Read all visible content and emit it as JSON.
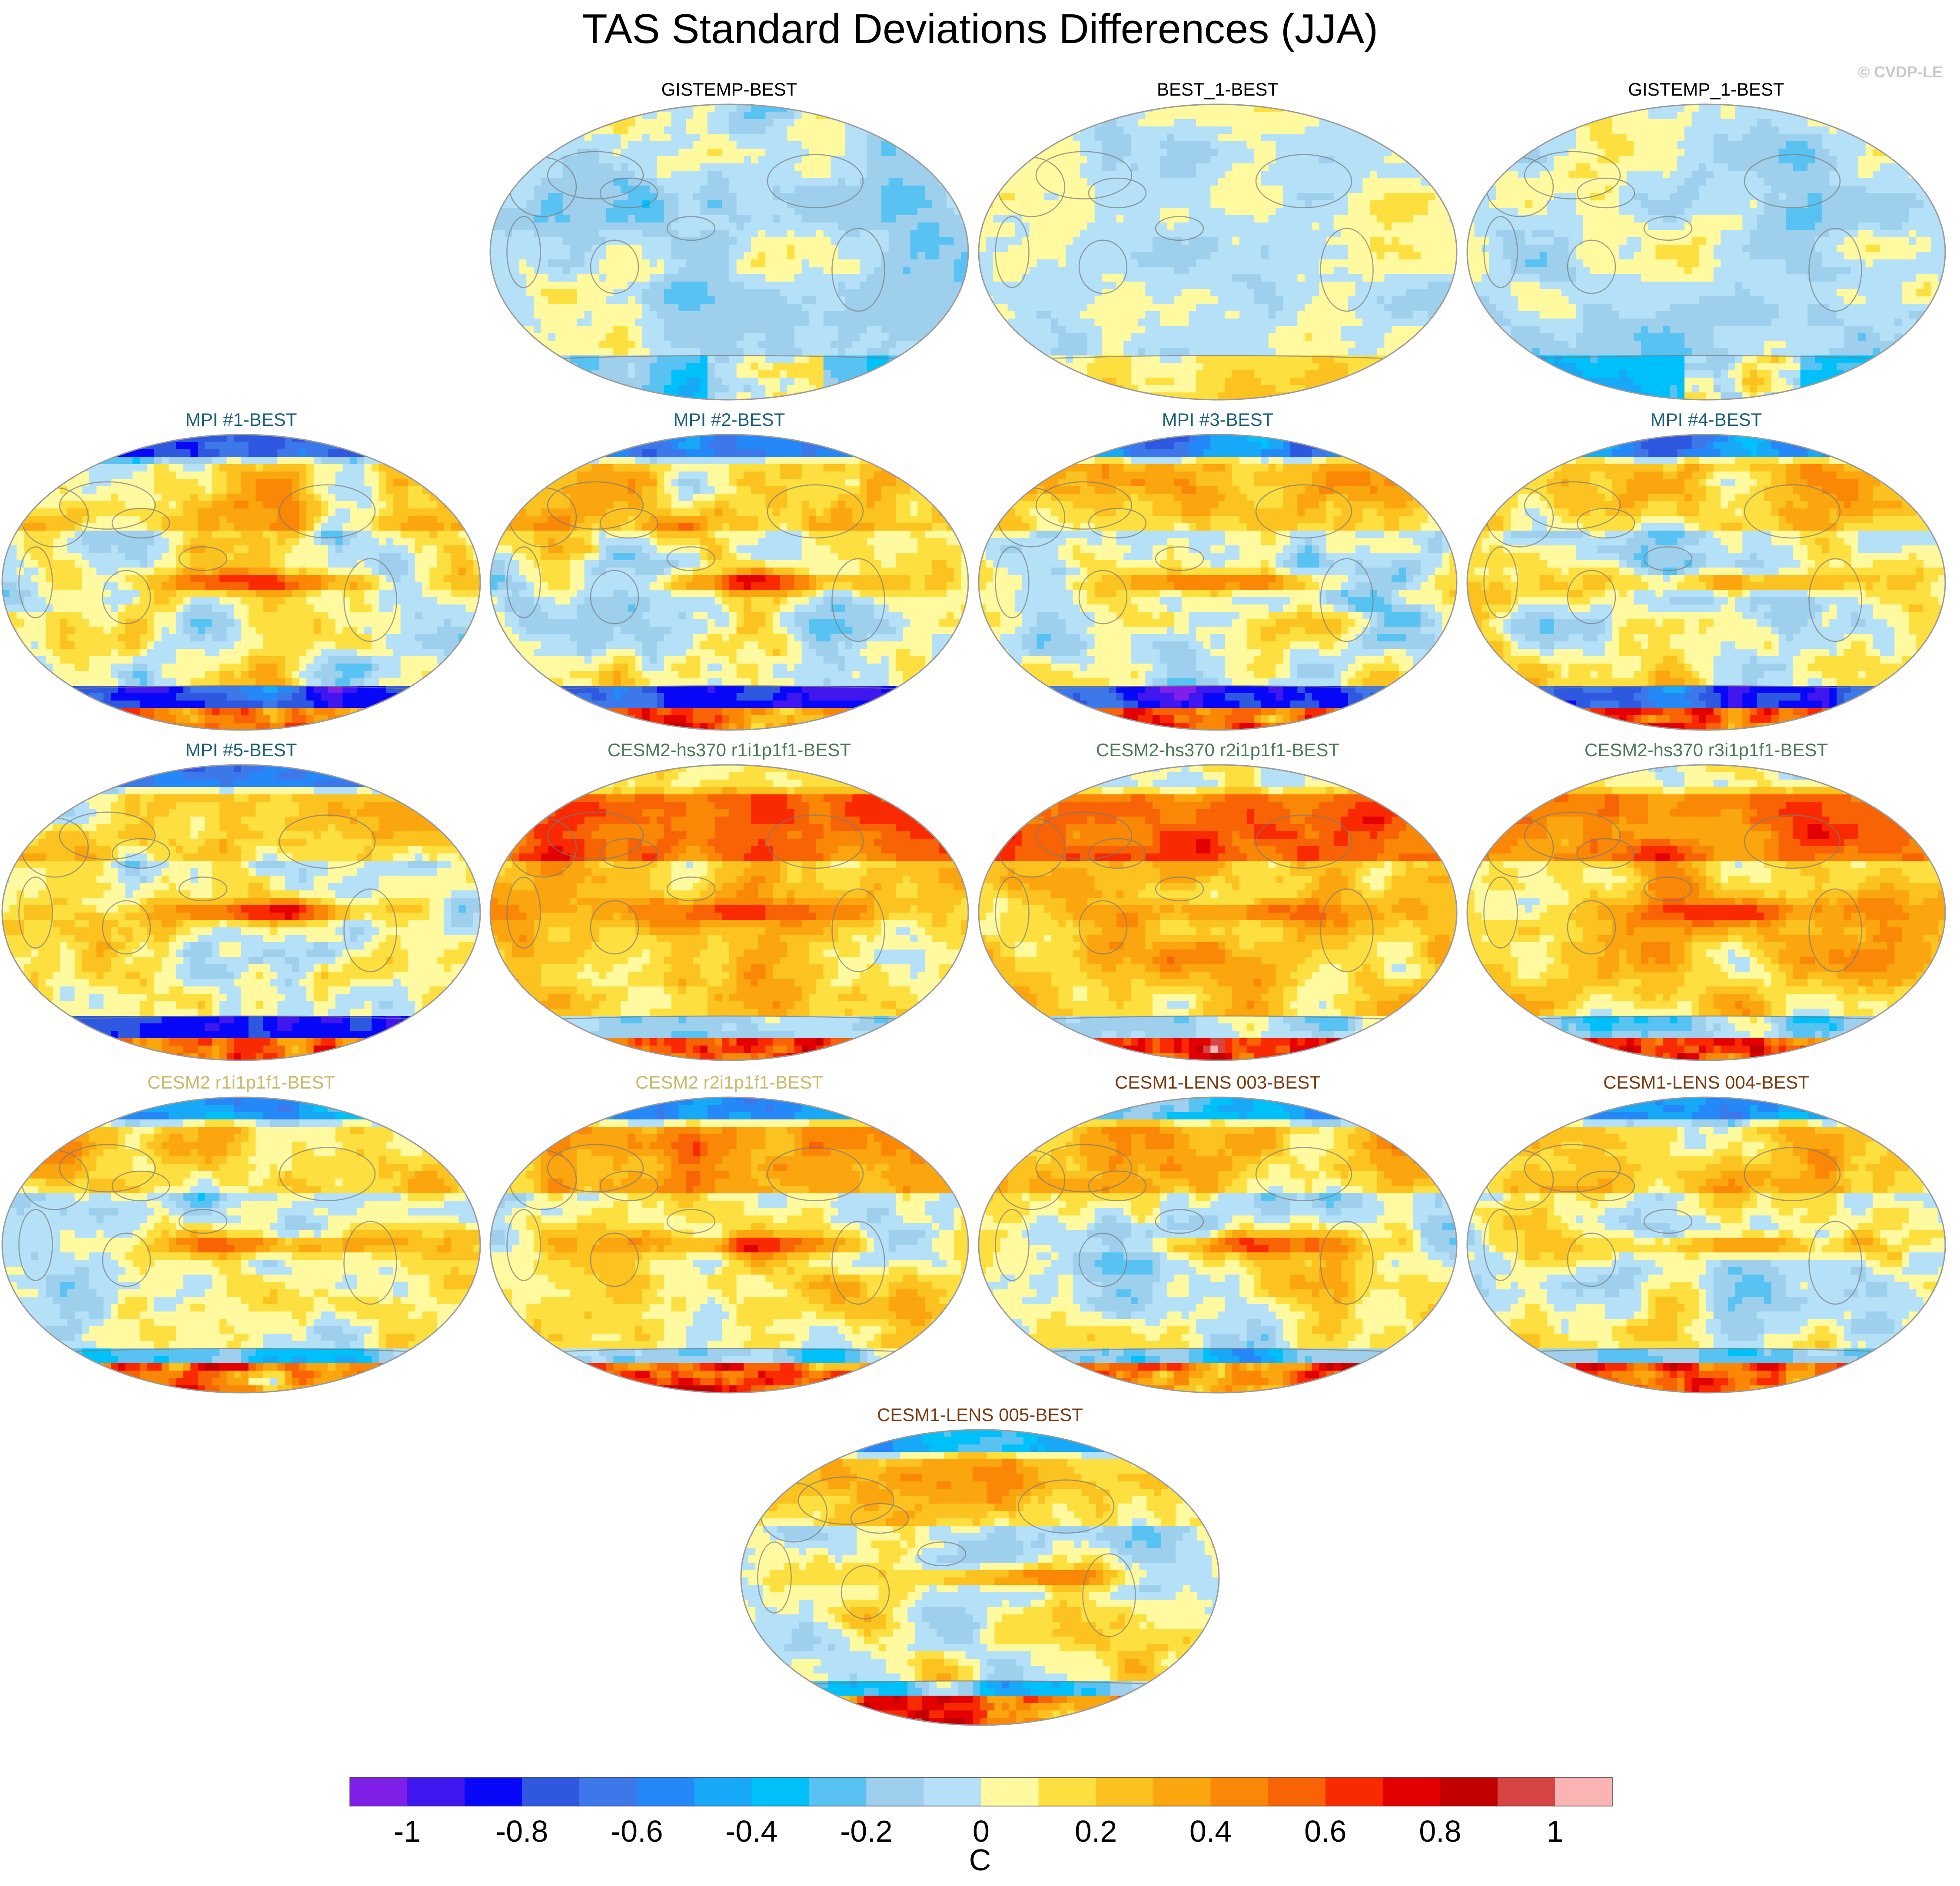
{
  "title": "TAS Standard Deviations Differences (JJA)",
  "credit": "© CVDP-LE",
  "colors": {
    "obs_title": "#000000",
    "mpi_title": "#1a5f7a",
    "cesm2hs_title": "#4a7a55",
    "cesm2_title": "#c9b96a",
    "cesm1_title": "#7a3b12",
    "land_outline": "#7a7a7a",
    "map_border": "#9a9a9a"
  },
  "chart_data": {
    "type": "heatmap",
    "projection": "Robinson-like global maps",
    "panels": [
      {
        "label": "GISTEMP-BEST",
        "group": "obs",
        "pattern": "obs"
      },
      {
        "label": "BEST_1-BEST",
        "group": "obs",
        "pattern": "obs2"
      },
      {
        "label": "GISTEMP_1-BEST",
        "group": "obs",
        "pattern": "obs"
      },
      {
        "label": "MPI #1-BEST",
        "group": "mpi",
        "pattern": "mpi"
      },
      {
        "label": "MPI #2-BEST",
        "group": "mpi",
        "pattern": "mpi"
      },
      {
        "label": "MPI #3-BEST",
        "group": "mpi",
        "pattern": "mpi"
      },
      {
        "label": "MPI #4-BEST",
        "group": "mpi",
        "pattern": "mpi"
      },
      {
        "label": "MPI #5-BEST",
        "group": "mpi",
        "pattern": "mpi"
      },
      {
        "label": "CESM2-hs370 r1i1p1f1-BEST",
        "group": "cesm2hs",
        "pattern": "warm"
      },
      {
        "label": "CESM2-hs370 r2i1p1f1-BEST",
        "group": "cesm2hs",
        "pattern": "warm"
      },
      {
        "label": "CESM2-hs370 r3i1p1f1-BEST",
        "group": "cesm2hs",
        "pattern": "warm"
      },
      {
        "label": "CESM2 r1i1p1f1-BEST",
        "group": "cesm2",
        "pattern": "mix"
      },
      {
        "label": "CESM2 r2i1p1f1-BEST",
        "group": "cesm2",
        "pattern": "mixwarm"
      },
      {
        "label": "CESM1-LENS 003-BEST",
        "group": "cesm1",
        "pattern": "mix"
      },
      {
        "label": "CESM1-LENS 004-BEST",
        "group": "cesm1",
        "pattern": "mix"
      },
      {
        "label": "CESM1-LENS 005-BEST",
        "group": "cesm1",
        "pattern": "mix"
      }
    ],
    "colorbar": {
      "unit": "C",
      "range": [
        -1.1,
        1.1
      ],
      "step": 0.1,
      "tick_labels": [
        "-1",
        "-0.8",
        "-0.6",
        "-0.4",
        "-0.2",
        "0",
        "0.2",
        "0.4",
        "0.6",
        "0.8",
        "1"
      ],
      "tick_values": [
        -1,
        -0.8,
        -0.6,
        -0.4,
        -0.2,
        0,
        0.2,
        0.4,
        0.6,
        0.8,
        1
      ],
      "colors": [
        "#7f1fe8",
        "#4017ef",
        "#0808f8",
        "#2f58e0",
        "#3d78ea",
        "#2488f8",
        "#18a8f8",
        "#00c0fa",
        "#58c3f2",
        "#9ed0ee",
        "#b4e0f8",
        "#fff9a0",
        "#fde03f",
        "#fcc21f",
        "#fba50f",
        "#fa8706",
        "#f86305",
        "#fa2a00",
        "#e20000",
        "#c30000",
        "#d74444",
        "#fbb4b4"
      ]
    }
  }
}
